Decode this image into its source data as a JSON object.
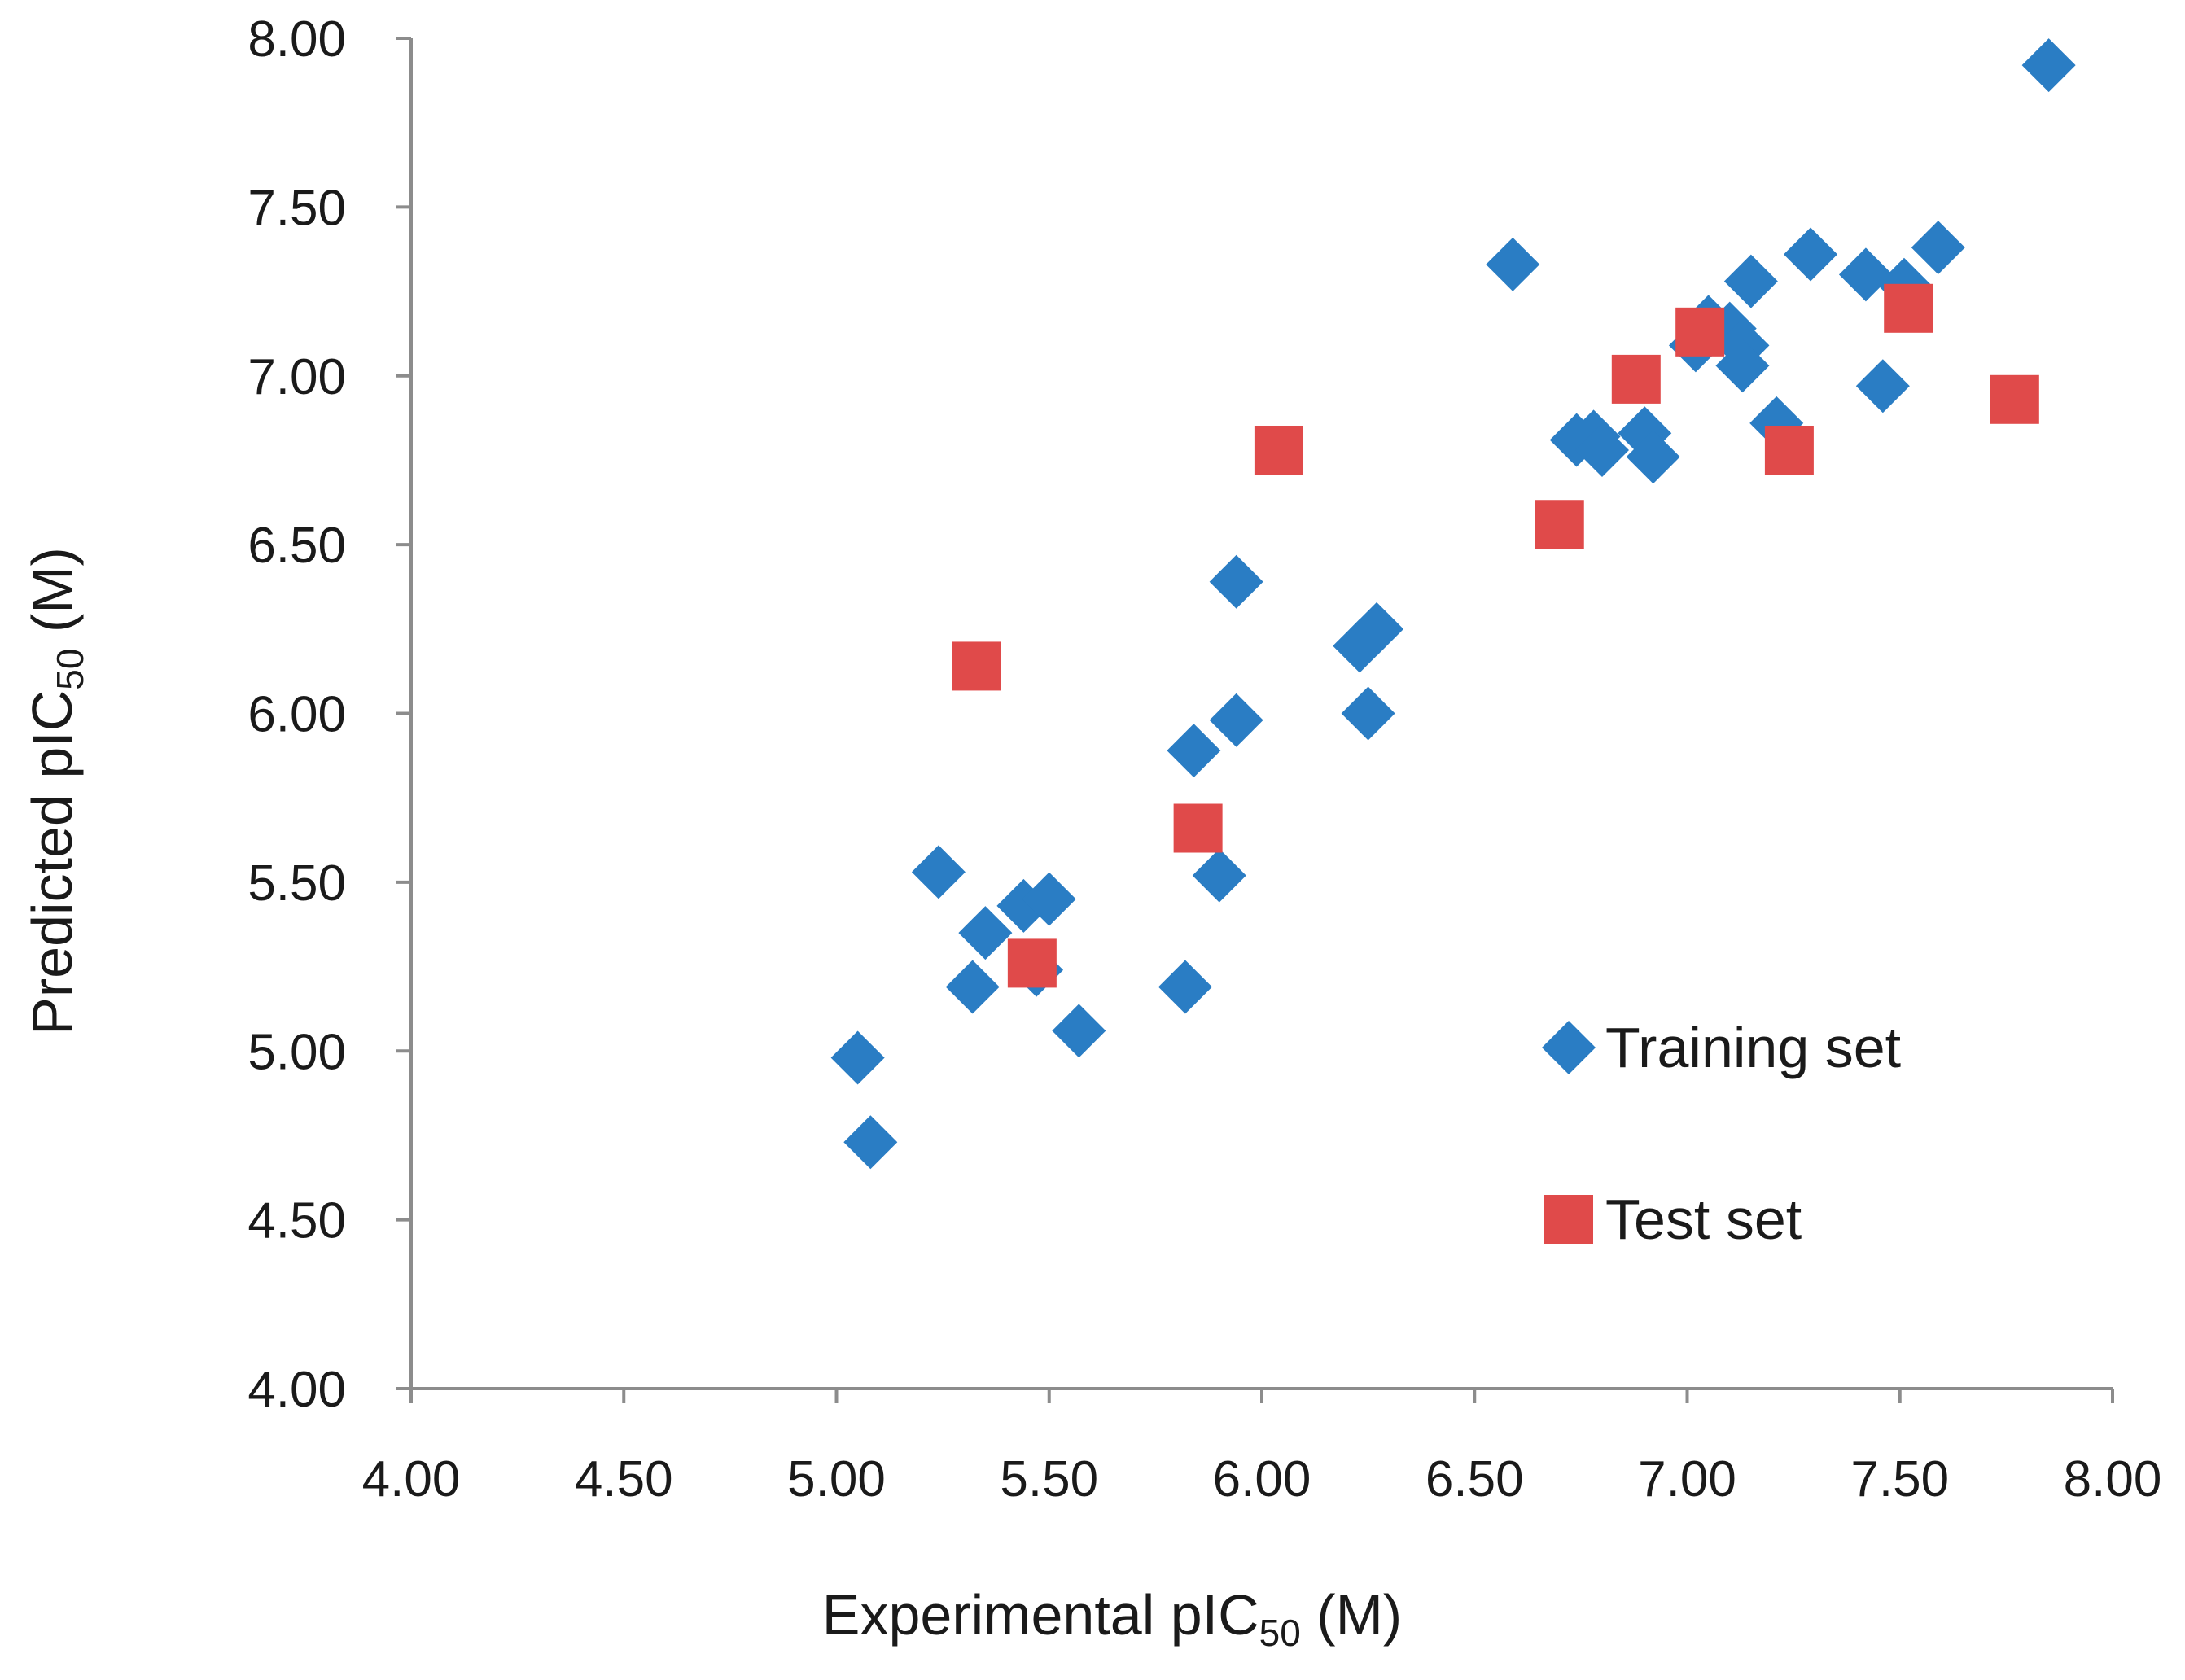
{
  "chart_data": {
    "type": "scatter",
    "title": "",
    "xlabel": {
      "prefix": "Experimental pIC",
      "subscript": "50",
      "suffix": " (M)"
    },
    "ylabel": {
      "prefix": "Predicted pIC",
      "subscript": "50",
      "suffix": " (M)"
    },
    "xlim": [
      4.0,
      8.0
    ],
    "ylim": [
      4.0,
      8.0
    ],
    "xticks": [
      "4.00",
      "4.50",
      "5.00",
      "5.50",
      "6.00",
      "6.50",
      "7.00",
      "7.50",
      "8.00"
    ],
    "yticks": [
      "4.00",
      "4.50",
      "5.00",
      "5.50",
      "6.00",
      "6.50",
      "7.00",
      "7.50",
      "8.00"
    ],
    "grid": false,
    "legend_position": "right",
    "series": [
      {
        "name": "Training set",
        "marker": "diamond",
        "color": "#2A7DC4",
        "points": [
          [
            5.05,
            4.98
          ],
          [
            5.08,
            4.73
          ],
          [
            5.24,
            5.53
          ],
          [
            5.32,
            5.19
          ],
          [
            5.35,
            5.35
          ],
          [
            5.44,
            5.43
          ],
          [
            5.47,
            5.24
          ],
          [
            5.5,
            5.45
          ],
          [
            5.57,
            5.06
          ],
          [
            5.82,
            5.19
          ],
          [
            5.84,
            5.89
          ],
          [
            5.9,
            5.52
          ],
          [
            5.94,
            5.98
          ],
          [
            5.94,
            6.39
          ],
          [
            6.23,
            6.2
          ],
          [
            6.25,
            6.0
          ],
          [
            6.27,
            6.25
          ],
          [
            6.59,
            7.33
          ],
          [
            6.74,
            6.81
          ],
          [
            6.78,
            6.82
          ],
          [
            6.8,
            6.78
          ],
          [
            6.9,
            6.83
          ],
          [
            6.92,
            6.76
          ],
          [
            7.02,
            7.09
          ],
          [
            7.05,
            7.16
          ],
          [
            7.1,
            7.14
          ],
          [
            7.13,
            7.09
          ],
          [
            7.13,
            7.03
          ],
          [
            7.15,
            7.28
          ],
          [
            7.21,
            6.86
          ],
          [
            7.29,
            7.36
          ],
          [
            7.42,
            7.3
          ],
          [
            7.46,
            6.97
          ],
          [
            7.51,
            7.27
          ],
          [
            7.59,
            7.38
          ],
          [
            7.85,
            7.92
          ]
        ]
      },
      {
        "name": "Test set",
        "marker": "square",
        "color": "#E04A4A",
        "points": [
          [
            5.33,
            6.14
          ],
          [
            5.46,
            5.26
          ],
          [
            5.85,
            5.66
          ],
          [
            6.04,
            6.78
          ],
          [
            6.7,
            6.56
          ],
          [
            6.88,
            6.99
          ],
          [
            7.03,
            7.13
          ],
          [
            7.24,
            6.78
          ],
          [
            7.52,
            7.2
          ],
          [
            7.77,
            6.93
          ]
        ]
      }
    ]
  }
}
